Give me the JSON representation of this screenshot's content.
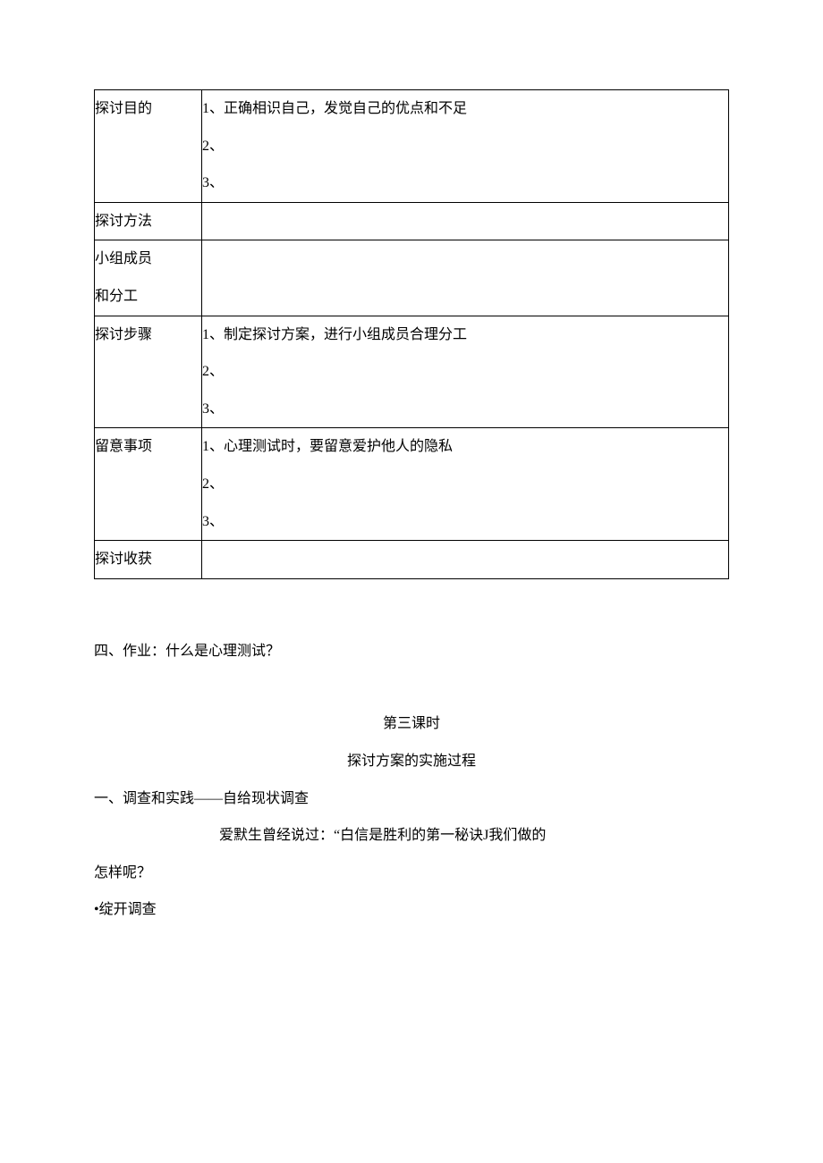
{
  "table": {
    "rows": [
      {
        "label": "探讨目的",
        "lines": [
          "1、正确相识自己，发觉自己的优点和不足",
          "2、",
          "3、"
        ]
      },
      {
        "label": "探讨方法",
        "lines": []
      },
      {
        "label": "小组成员\n和分工",
        "lines": []
      },
      {
        "label": "探讨步骤",
        "lines": [
          "1、制定探讨方案，进行小组成员合理分工",
          "2、",
          "3、"
        ]
      },
      {
        "label": "留意事项",
        "lines": [
          "1、心理测试时，要留意爱护他人的隐私",
          "2、",
          "3、"
        ]
      },
      {
        "label": "探讨收获",
        "lines": []
      }
    ]
  },
  "body": {
    "homework": "四、作业：什么是心理测试？",
    "lesson_title": "第三课时",
    "lesson_subtitle": "探讨方案的实施过程",
    "section1": "一、调查和实践——自给现状调查",
    "quote_line": "爱默生曾经说过：“白信是胜利的第一秘诀J我们做的",
    "quote_cont": "怎样呢？",
    "bullet": "•绽开调查"
  }
}
